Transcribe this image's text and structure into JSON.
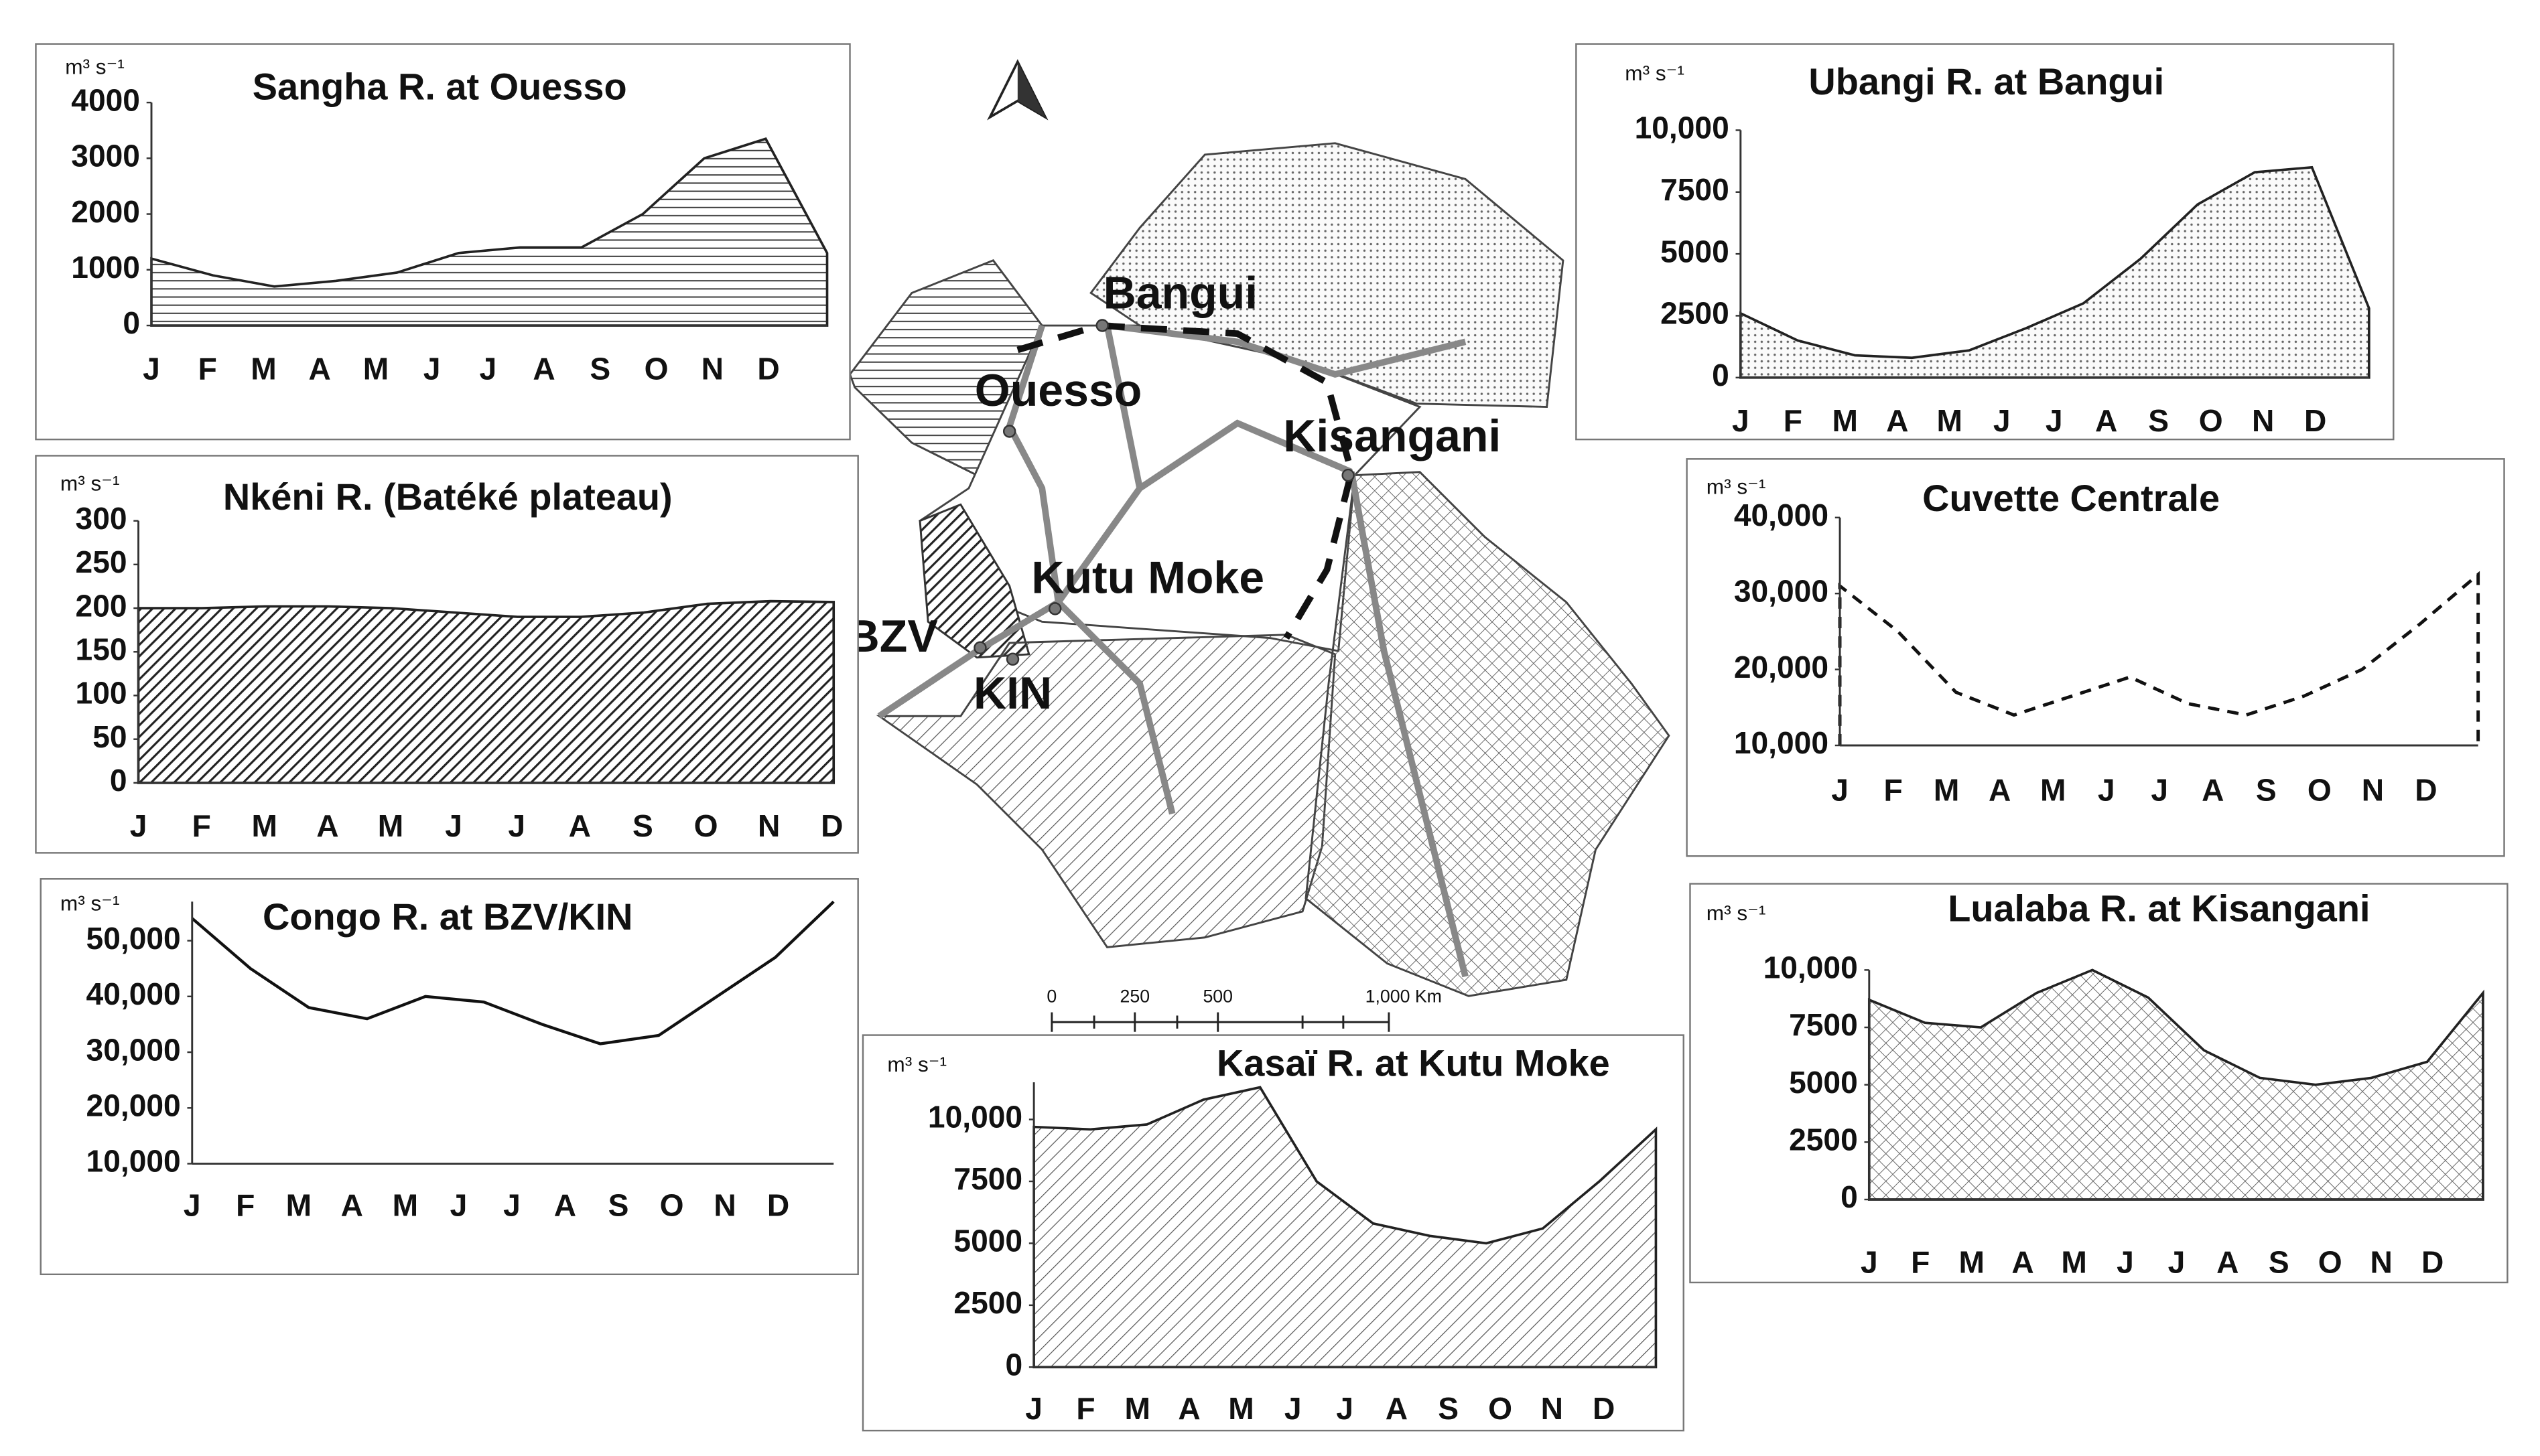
{
  "chart_data": [
    {
      "type": "area",
      "title": "Sangha R. at Ouesso",
      "unit": "m³ s⁻¹",
      "fill": "horizontal-hatch",
      "color": "#222",
      "categories": [
        "J",
        "F",
        "M",
        "A",
        "M",
        "J",
        "J",
        "A",
        "S",
        "O",
        "N",
        "D"
      ],
      "values": [
        1200,
        900,
        700,
        800,
        950,
        1300,
        1400,
        1400,
        2000,
        3000,
        3350,
        1300
      ],
      "ylim": [
        0,
        4000
      ],
      "yticks": [
        0,
        1000,
        2000,
        3000,
        4000
      ]
    },
    {
      "type": "area",
      "title": "Nkéni  R. (Batéké plateau)",
      "unit": "m³ s⁻¹",
      "fill": "dense-diagonal",
      "color": "#222",
      "categories": [
        "J",
        "F",
        "M",
        "A",
        "M",
        "J",
        "J",
        "A",
        "S",
        "O",
        "N",
        "D"
      ],
      "values": [
        200,
        200,
        202,
        202,
        200,
        195,
        190,
        190,
        195,
        205,
        208,
        207
      ],
      "ylim": [
        0,
        300
      ],
      "yticks": [
        0,
        50,
        100,
        150,
        200,
        250,
        300
      ]
    },
    {
      "type": "line",
      "title": "Congo R. at BZV/KIN",
      "unit": "m³ s⁻¹",
      "color": "#111",
      "categories": [
        "J",
        "F",
        "M",
        "A",
        "M",
        "J",
        "J",
        "A",
        "S",
        "O",
        "N",
        "D"
      ],
      "values": [
        54000,
        45000,
        38000,
        36000,
        40000,
        39000,
        35000,
        31500,
        33000,
        40000,
        47000,
        57000
      ],
      "ylim": [
        10000,
        57000
      ],
      "yticks": [
        {
          "value": 10000,
          "label": "10,000"
        },
        {
          "value": 20000,
          "label": "20,000"
        },
        {
          "value": 30000,
          "label": "30,000"
        },
        {
          "value": 40000,
          "label": "40,000"
        },
        {
          "value": 50000,
          "label": "50,000"
        }
      ]
    },
    {
      "type": "area",
      "title": "Kasaï R. at Kutu Moke",
      "unit": "m³ s⁻¹",
      "fill": "light-diagonal",
      "color": "#222",
      "categories": [
        "J",
        "F",
        "M",
        "A",
        "M",
        "J",
        "J",
        "A",
        "S",
        "O",
        "N",
        "D"
      ],
      "values": [
        9700,
        9600,
        9800,
        10800,
        11300,
        7500,
        5800,
        5300,
        5000,
        5600,
        7500,
        9600
      ],
      "ylim": [
        0,
        11500
      ],
      "yticks": [
        0,
        2500,
        5000,
        7500,
        {
          "value": 10000,
          "label": "10,000"
        }
      ]
    },
    {
      "type": "area",
      "title": "Ubangi R. at Bangui",
      "unit": "m³ s⁻¹",
      "fill": "dots",
      "color": "#222",
      "categories": [
        "J",
        "F",
        "M",
        "A",
        "M",
        "J",
        "J",
        "A",
        "S",
        "O",
        "N",
        "D"
      ],
      "values": [
        2600,
        1500,
        900,
        800,
        1100,
        2000,
        3000,
        4800,
        7000,
        8300,
        8500,
        2800
      ],
      "ylim": [
        0,
        10000
      ],
      "yticks": [
        0,
        2500,
        5000,
        7500,
        {
          "value": 10000,
          "label": "10,000"
        }
      ]
    },
    {
      "type": "line",
      "title": "Cuvette Centrale",
      "unit": "m³ s⁻¹",
      "dashed": true,
      "color": "#111",
      "categories": [
        "J",
        "F",
        "M",
        "A",
        "M",
        "J",
        "J",
        "A",
        "S",
        "O",
        "N",
        "D"
      ],
      "values": [
        31000,
        25000,
        17000,
        14000,
        16500,
        19000,
        15500,
        14000,
        16500,
        20000,
        26000,
        32500
      ],
      "ylim": [
        10000,
        40000
      ],
      "yticks": [
        {
          "value": 10000,
          "label": "10,000"
        },
        {
          "value": 20000,
          "label": "20,000"
        },
        {
          "value": 30000,
          "label": "30,000"
        },
        {
          "value": 40000,
          "label": "40,000"
        }
      ]
    },
    {
      "type": "area",
      "title": "Lualaba R. at Kisangani",
      "unit": "m³ s⁻¹",
      "fill": "cross-hatch",
      "color": "#222",
      "categories": [
        "J",
        "F",
        "M",
        "A",
        "M",
        "J",
        "J",
        "A",
        "S",
        "O",
        "N",
        "D"
      ],
      "values": [
        8700,
        7700,
        7500,
        9000,
        10000,
        8800,
        6500,
        5300,
        5000,
        5300,
        6000,
        9000
      ],
      "ylim": [
        0,
        10000
      ],
      "yticks": [
        0,
        2500,
        5000,
        7500,
        {
          "value": 10000,
          "label": "10,000"
        }
      ]
    }
  ],
  "map": {
    "places": [
      "Bangui",
      "Ouesso",
      "Kisangani",
      "Kutu Moke",
      "BZV",
      "KIN"
    ],
    "scale_labels": [
      "0",
      "250",
      "500",
      "1,000 Km"
    ]
  }
}
